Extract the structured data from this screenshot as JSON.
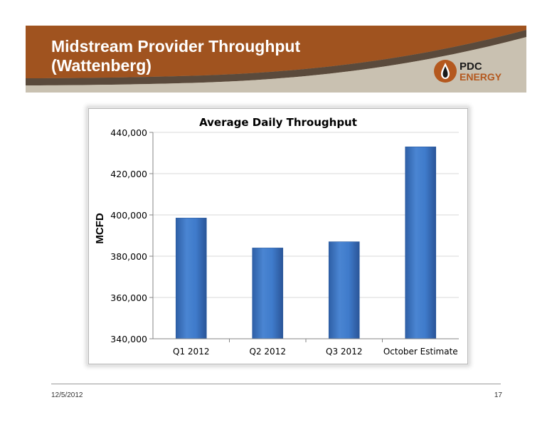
{
  "slide": {
    "title_line1": "Midstream Provider Throughput",
    "title_line2": "(Wattenberg)",
    "date": "12/5/2012",
    "page_number": "17"
  },
  "logo": {
    "line1": "PDC",
    "line2": "ENERGY"
  },
  "colors": {
    "banner_brown": "#A0531F",
    "banner_tan": "#C3B59B",
    "bar_blue": "#3A74C1",
    "logo_brown": "#B4581E"
  },
  "chart_data": {
    "type": "bar",
    "title": "Average Daily Throughput",
    "xlabel": "",
    "ylabel": "MCFD",
    "categories": [
      "Q1 2012",
      "Q2 2012",
      "Q3 2012",
      "October Estimate"
    ],
    "values": [
      398500,
      384000,
      387000,
      433000
    ],
    "ylim": [
      340000,
      440000
    ],
    "yticks": [
      "340,000",
      "360,000",
      "380,000",
      "400,000",
      "420,000",
      "440,000"
    ],
    "ytick_values": [
      340000,
      360000,
      380000,
      400000,
      420000,
      440000
    ],
    "grid": true,
    "legend": "none"
  }
}
